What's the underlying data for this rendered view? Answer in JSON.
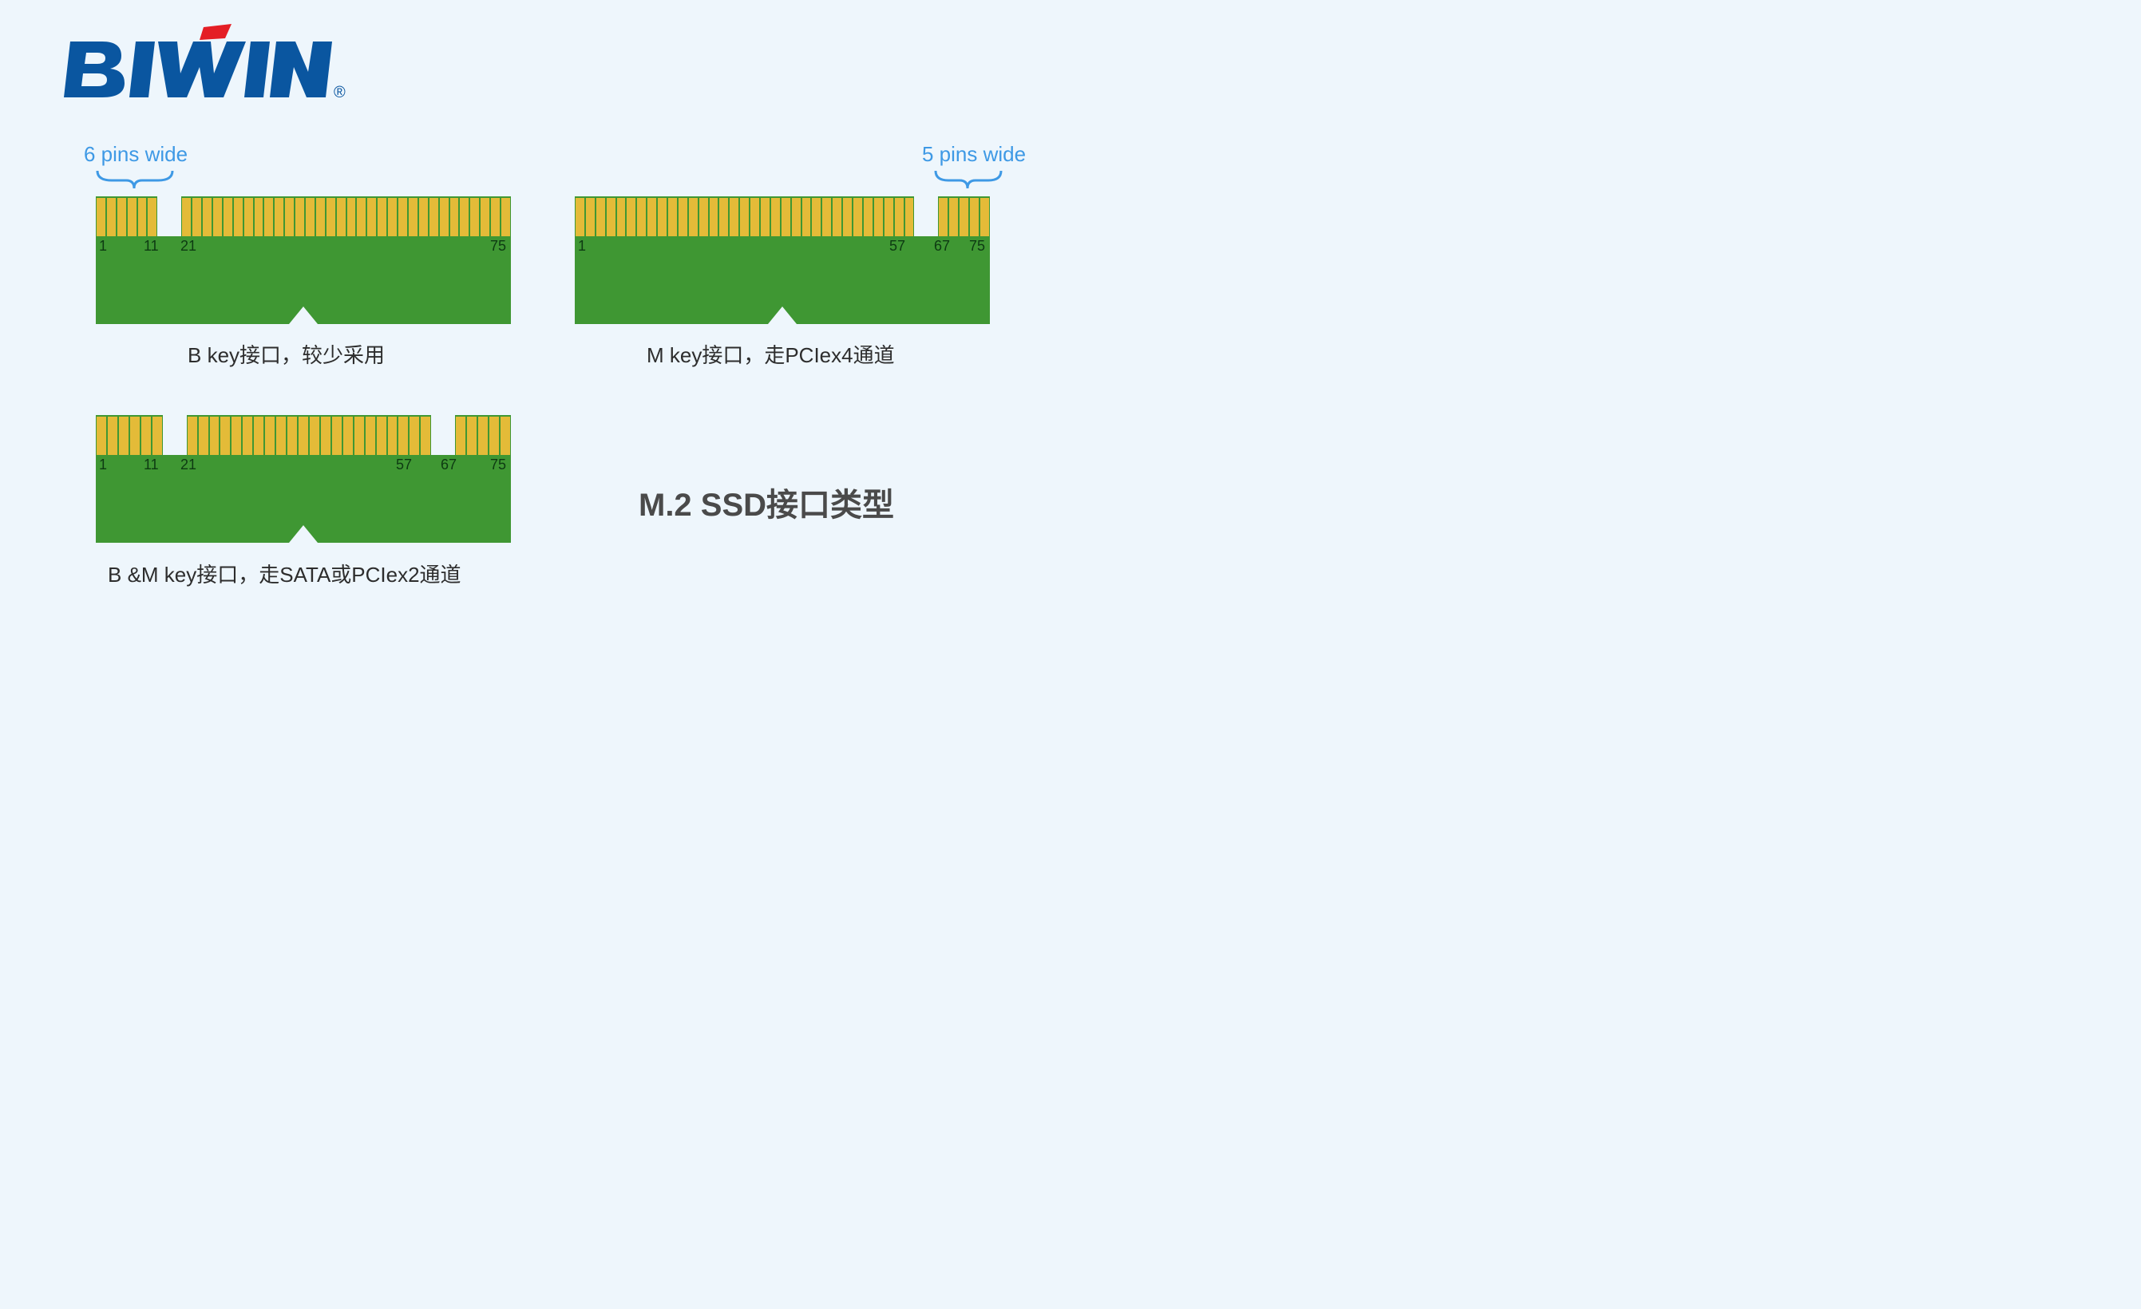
{
  "logo": {
    "text": "BIWIN",
    "text_color": "#0a56a0",
    "accent_color": "#e41e25",
    "registered": "®"
  },
  "labels": {
    "left_pins": "6 pins wide",
    "right_pins": "5 pins wide"
  },
  "connectors": {
    "b_key": {
      "caption": "B key接口，较少采用",
      "total_pins_visual": 38,
      "segments": [
        {
          "pins": 6,
          "start_label": "1",
          "end_label": "11"
        },
        {
          "pins": 32,
          "start_label": "21",
          "end_label": "75"
        }
      ],
      "pin_labels": [
        "1",
        "11",
        "21",
        "75"
      ],
      "pcb_color": "#3f9733",
      "pin_color": "#e4bb38"
    },
    "m_key": {
      "caption": "M key接口，走PCIex4通道",
      "segments": [
        {
          "pins": 33,
          "start_label": "1",
          "end_label": "57"
        },
        {
          "pins": 5,
          "start_label": "67",
          "end_label": "75"
        }
      ],
      "pin_labels": [
        "1",
        "57",
        "67",
        "75"
      ],
      "pcb_color": "#3f9733",
      "pin_color": "#e4bb38"
    },
    "bm_key": {
      "caption": "B &M key接口，走SATA或PCIex2通道",
      "segments": [
        {
          "pins": 6,
          "start_label": "1",
          "end_label": "11"
        },
        {
          "pins": 22,
          "start_label": "21",
          "end_label": "57"
        },
        {
          "pins": 5,
          "start_label": "67",
          "end_label": "75"
        }
      ],
      "pin_labels": [
        "1",
        "11",
        "21",
        "57",
        "67",
        "75"
      ],
      "pcb_color": "#3f9733",
      "pin_color": "#e4bb38"
    }
  },
  "title": "M.2 SSD接口类型",
  "colors": {
    "background": "#eef6fc",
    "label_blue": "#3e99e5",
    "pcb_green": "#3f9733",
    "pin_yellow": "#e4bb38",
    "text_dark": "#2d2d2d",
    "title_gray": "#4a4a4a"
  }
}
